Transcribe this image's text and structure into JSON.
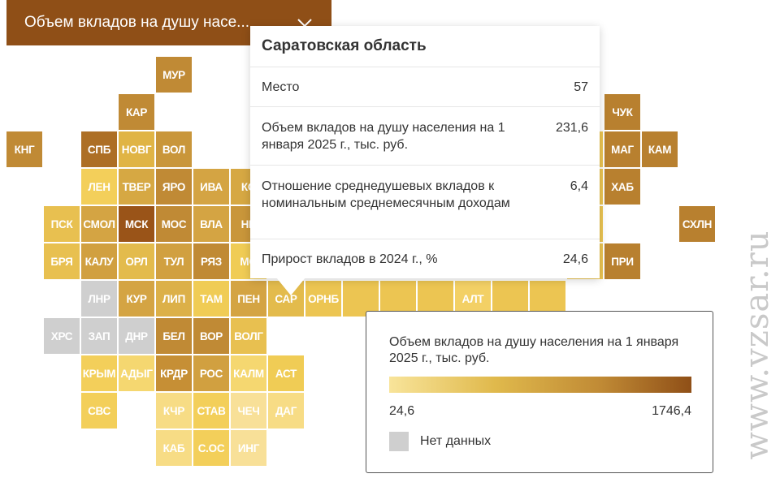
{
  "header": {
    "title": "Объем вкладов на душу насе...",
    "icon": "chevron-down-icon",
    "color": "#8f4f17"
  },
  "cells": [
    {
      "label": "МУР",
      "color": "#c08a35"
    },
    {
      "label": "КАР",
      "color": "#c08a35"
    },
    {
      "label": "ЧУК",
      "color": "#b8802f"
    },
    {
      "label": "КНГ",
      "color": "#c08a35"
    },
    {
      "label": "СПБ",
      "color": "#ad6f25"
    },
    {
      "label": "НОВГ",
      "color": "#e0b445"
    },
    {
      "label": "ВОЛ",
      "color": "#c9963a"
    },
    {
      "label": "МАГ",
      "color": "#b8802f"
    },
    {
      "label": "КАМ",
      "color": "#b8802f"
    },
    {
      "label": "ЛЕН",
      "color": "#f3cf5a"
    },
    {
      "label": "ТВЕР",
      "color": "#d6a843"
    },
    {
      "label": "ЯРО",
      "color": "#c08a35"
    },
    {
      "label": "ИВА",
      "color": "#d4a443"
    },
    {
      "label": "КО",
      "color": "#d6a843"
    },
    {
      "label": "ХАБ",
      "color": "#b8802f"
    },
    {
      "label": "ПСК",
      "color": "#e8c050"
    },
    {
      "label": "СМОЛ",
      "color": "#d4a443"
    },
    {
      "label": "МСК",
      "color": "#9a5418"
    },
    {
      "label": "МОС",
      "color": "#c08a35"
    },
    {
      "label": "ВЛА",
      "color": "#d4a443"
    },
    {
      "label": "НИ",
      "color": "#c9963a"
    },
    {
      "label": "СХЛН",
      "color": "#b8802f"
    },
    {
      "label": "БРЯ",
      "color": "#e8c050"
    },
    {
      "label": "КАЛУ",
      "color": "#d1a040"
    },
    {
      "label": "ОРЛ",
      "color": "#e3bb4c"
    },
    {
      "label": "ТУЛ",
      "color": "#d1a040"
    },
    {
      "label": "РЯЗ",
      "color": "#c08a35"
    },
    {
      "label": "МО",
      "color": "#f0cc55"
    },
    {
      "label": "ПРИ",
      "color": "#b8802f"
    },
    {
      "label": "ЛНР",
      "color": "#cfcfcf"
    },
    {
      "label": "КУР",
      "color": "#d4a443"
    },
    {
      "label": "ЛИП",
      "color": "#dcb048"
    },
    {
      "label": "ТАМ",
      "color": "#f0cc55"
    },
    {
      "label": "ПЕН",
      "color": "#d4a443"
    },
    {
      "label": "САР",
      "color": "#e3bb4c"
    },
    {
      "label": "ОРНБ",
      "color": "#ecc552"
    },
    {
      "label": "АЛТ",
      "color": "#f3d065"
    },
    {
      "label": "ХРС",
      "color": "#cfcfcf"
    },
    {
      "label": "ЗАП",
      "color": "#cfcfcf"
    },
    {
      "label": "ДНР",
      "color": "#cfcfcf"
    },
    {
      "label": "БЕЛ",
      "color": "#c08a35"
    },
    {
      "label": "ВОР",
      "color": "#c08a35"
    },
    {
      "label": "ВОЛГ",
      "color": "#e8c050"
    },
    {
      "label": "КРЫМ",
      "color": "#f3cf5a"
    },
    {
      "label": "АДЫГ",
      "color": "#f5d770"
    },
    {
      "label": "КРДР",
      "color": "#c68f35"
    },
    {
      "label": "РОС",
      "color": "#d1a040"
    },
    {
      "label": "КАЛМ",
      "color": "#f5d770"
    },
    {
      "label": "АСТ",
      "color": "#f0cc55"
    },
    {
      "label": "СВС",
      "color": "#f3cf5a"
    },
    {
      "label": "КЧР",
      "color": "#f7dc85"
    },
    {
      "label": "СТАВ",
      "color": "#f3cf5a"
    },
    {
      "label": "ЧЕЧ",
      "color": "#f8e098"
    },
    {
      "label": "ДАГ",
      "color": "#f7dc85"
    },
    {
      "label": "КАБ",
      "color": "#f7dc85"
    },
    {
      "label": "С.ОС",
      "color": "#f3cf5a"
    },
    {
      "label": "ИНГ",
      "color": "#f8e098"
    }
  ],
  "tooltip": {
    "title": "Саратовская область",
    "rows": [
      {
        "label": "Место",
        "value": "57"
      },
      {
        "label": "Объем вкладов на душу населения на 1 января 2025 г., тыс. руб.",
        "value": "231,6"
      },
      {
        "label": "Отношение среднедушевых вкладов к номинальным среднемесячным доходам",
        "value": "6,4"
      },
      {
        "label": "Прирост вкладов в 2024 г., %",
        "value": "24,6"
      }
    ]
  },
  "legend": {
    "title": "Объем вкладов на душу населения на 1 января 2025 г., тыс. руб.",
    "min": "24,6",
    "max": "1746,4",
    "no_data": "Нет данных",
    "no_data_color": "#cfcfcf"
  },
  "watermark": "www.vzsar.ru"
}
